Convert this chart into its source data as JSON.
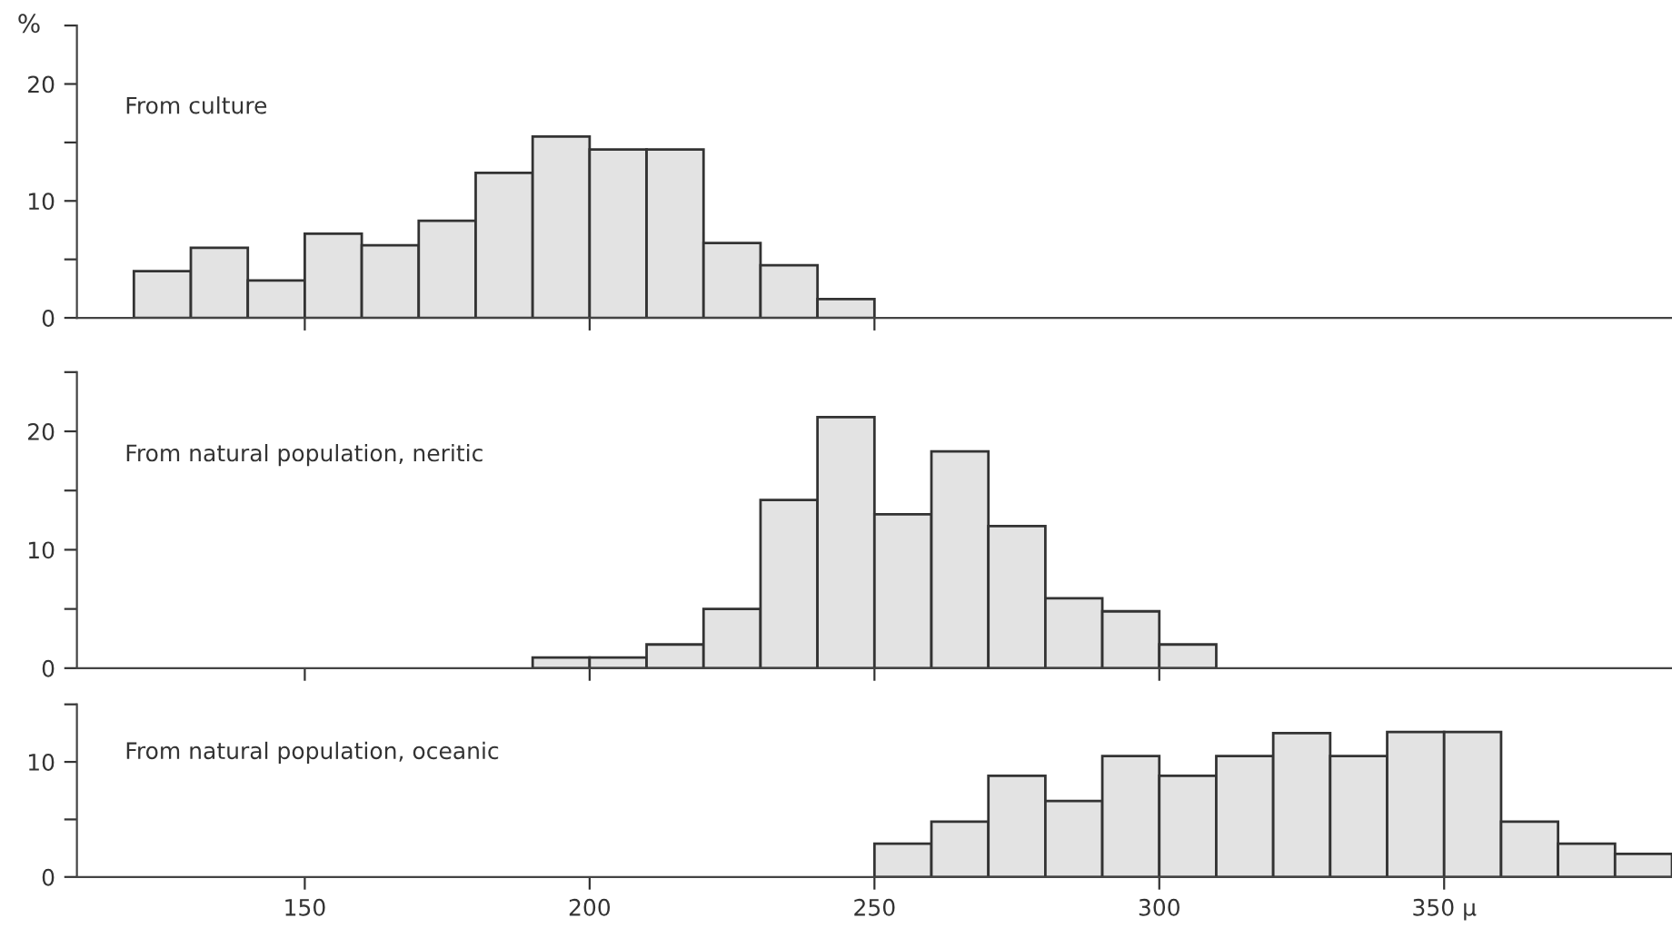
{
  "chart_data": [
    {
      "type": "histogram",
      "title": "From culture",
      "ylabel": "%",
      "bins": [
        120,
        130,
        140,
        150,
        160,
        170,
        180,
        190,
        200,
        210,
        220,
        230,
        240,
        250
      ],
      "values": [
        4.0,
        6.0,
        3.2,
        7.2,
        6.2,
        8.3,
        12.4,
        15.5,
        14.4,
        14.4,
        6.4,
        4.5,
        1.6
      ],
      "color": "#e3e3e3",
      "xlim": [
        110,
        390
      ],
      "ylim": [
        0,
        25
      ],
      "xticks": [
        {
          "value": 150,
          "label": null
        },
        {
          "value": 200,
          "label": null
        },
        {
          "value": 250,
          "label": null
        }
      ],
      "yticks": [
        0,
        {
          "value": 5,
          "label": null
        },
        10,
        {
          "value": 15,
          "label": null
        },
        20,
        {
          "value": 25,
          "label": null
        }
      ],
      "tick_labels": "y",
      "grid": false,
      "legend": false
    },
    {
      "type": "histogram",
      "title": "From natural population, neritic",
      "bins": [
        190,
        200,
        210,
        220,
        230,
        240,
        250,
        260,
        270,
        280,
        290,
        300,
        310
      ],
      "values": [
        0.9,
        0.9,
        2.0,
        5.0,
        14.2,
        21.2,
        13.0,
        18.3,
        12.0,
        5.9,
        4.8,
        2.0
      ],
      "color": "#e3e3e3",
      "xlim": [
        110,
        390
      ],
      "ylim": [
        0,
        25
      ],
      "xticks": [
        {
          "value": 150,
          "label": null
        },
        {
          "value": 200,
          "label": null
        },
        {
          "value": 250,
          "label": null
        },
        {
          "value": 300,
          "label": null
        }
      ],
      "yticks": [
        0,
        {
          "value": 5,
          "label": null
        },
        10,
        {
          "value": 15,
          "label": null
        },
        20,
        {
          "value": 25,
          "label": null
        }
      ],
      "tick_labels": "y",
      "grid": false,
      "legend": false
    },
    {
      "type": "histogram",
      "title": "From natural population, oceanic",
      "bins": [
        250,
        260,
        270,
        280,
        290,
        300,
        310,
        320,
        330,
        340,
        350,
        360,
        370,
        380,
        390
      ],
      "values": [
        2.9,
        4.8,
        8.8,
        6.6,
        10.5,
        8.8,
        10.5,
        12.5,
        10.5,
        12.6,
        12.6,
        4.8,
        2.9,
        2.0
      ],
      "color": "#e3e3e3",
      "xlim": [
        110,
        390
      ],
      "ylim": [
        0,
        15
      ],
      "xticks": [
        150,
        200,
        250,
        300,
        {
          "value": 350,
          "label": "350 μ"
        }
      ],
      "yticks": [
        0,
        {
          "value": 5,
          "label": null
        },
        10,
        {
          "value": 15,
          "label": null
        }
      ],
      "grid": false,
      "legend": false
    }
  ]
}
